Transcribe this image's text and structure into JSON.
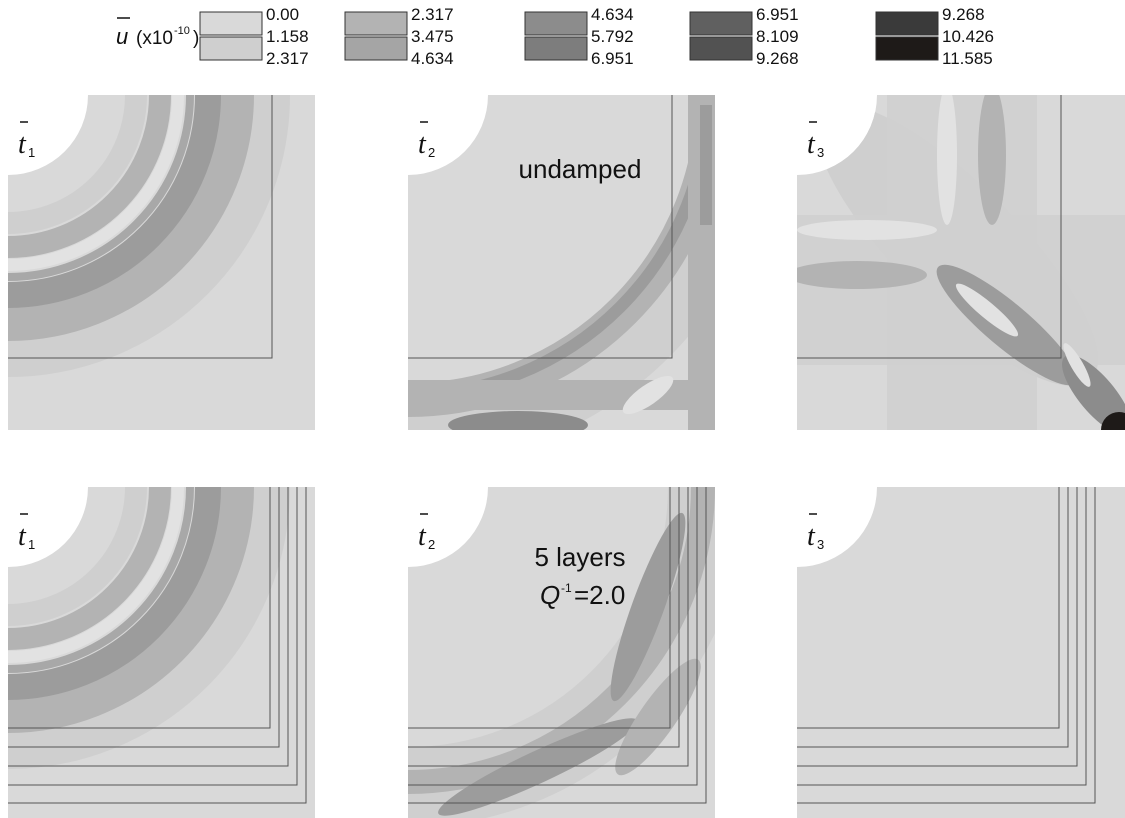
{
  "legend": {
    "symbol": "u",
    "scale": "(x10",
    "exponent": "-10",
    "scale_end": ")",
    "groups": [
      [
        "0.00",
        "1.158",
        "2.317"
      ],
      [
        "2.317",
        "3.475",
        "4.634"
      ],
      [
        "4.634",
        "5.792",
        "6.951"
      ],
      [
        "6.951",
        "8.109",
        "9.268"
      ],
      [
        "9.268",
        "10.426",
        "11.585"
      ]
    ]
  },
  "panels": {
    "times": [
      {
        "symbol": "t",
        "sub": "1"
      },
      {
        "symbol": "t",
        "sub": "2"
      },
      {
        "symbol": "t",
        "sub": "3"
      }
    ],
    "rows": [
      {
        "note": "undamped"
      },
      {
        "note": "5 layers",
        "q_symbol": "Q",
        "q_exponent": "-1",
        "q_value": "=2.0"
      }
    ]
  }
}
